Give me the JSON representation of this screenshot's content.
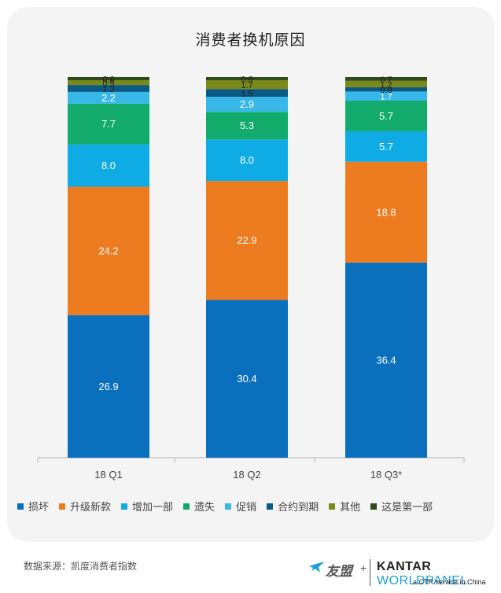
{
  "chart_data": {
    "type": "stacked-bar",
    "title": "消费者换机原因",
    "categories": [
      "18 Q1",
      "18 Q2",
      "18 Q3*"
    ],
    "series": [
      {
        "name": "损坏",
        "color": "#0a6fbd",
        "values": [
          26.9,
          30.4,
          36.4
        ]
      },
      {
        "name": "升级新款",
        "color": "#ed7b1f",
        "values": [
          24.2,
          22.9,
          18.8
        ]
      },
      {
        "name": "增加一部",
        "color": "#0fabe4",
        "values": [
          8.0,
          8.0,
          5.7
        ]
      },
      {
        "name": "遗失",
        "color": "#13ab6b",
        "values": [
          7.7,
          5.3,
          5.7
        ]
      },
      {
        "name": "促销",
        "color": "#38b8e8",
        "values": [
          2.2,
          2.9,
          1.7
        ]
      },
      {
        "name": "合约到期",
        "color": "#0b5a85",
        "values": [
          1.3,
          1.5,
          0.8
        ]
      },
      {
        "name": "其他",
        "color": "#7a8a1a",
        "values": [
          0.9,
          1.7,
          1.2
        ]
      },
      {
        "name": "这是第一部",
        "color": "#2f4a1c",
        "values": [
          0.6,
          0.6,
          0.7
        ]
      }
    ],
    "xlabel": "",
    "ylabel": "",
    "grid": false,
    "legend": "bottom"
  },
  "footer": {
    "source": "数据来源：凯度消费者指数",
    "logo_youmeng": "友盟",
    "logo_plus": "+",
    "logo_kantar": "KANTAR",
    "logo_worldpanel": "WORLDPANEL",
    "logo_sub": "a CTR service in China"
  }
}
